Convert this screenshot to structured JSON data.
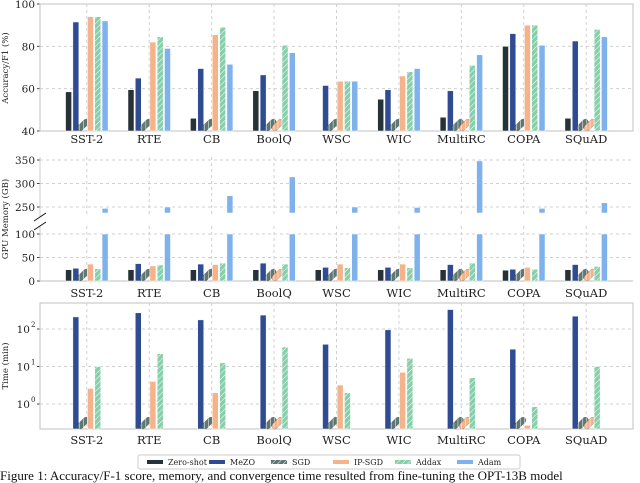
{
  "colors": {
    "Zero-shot": "#263238",
    "MeZO": "#2f4b92",
    "SGD": "#5d7772",
    "IP-SGD": "#f4b38a",
    "Addax": "#86cfaa",
    "Adam": "#7fb2ec"
  },
  "oom_marker": "hatched-out-of-memory-marker",
  "chart_data": [
    {
      "type": "bar",
      "ylabel": "Accuracy/F1 (%)",
      "ylim": [
        40,
        100
      ],
      "yticks": [
        "40",
        "60",
        "80",
        "100"
      ],
      "grid": true,
      "categories": [
        "SST-2",
        "RTE",
        "CB",
        "BoolQ",
        "WSC",
        "WIC",
        "MultiRC",
        "COPA",
        "SQuAD"
      ],
      "series": [
        {
          "name": "Zero-shot",
          "values": [
            58.5,
            59.5,
            46,
            59,
            null,
            55,
            46.5,
            80,
            46
          ]
        },
        {
          "name": "MeZO",
          "values": [
            91.5,
            65,
            69.5,
            66.5,
            61.5,
            59.5,
            59,
            86,
            82.5
          ]
        },
        {
          "name": "SGD",
          "values": [
            "OOM",
            "OOM",
            "OOM",
            "OOM",
            "OOM",
            "OOM",
            "OOM",
            "OOM",
            "OOM"
          ]
        },
        {
          "name": "IP-SGD",
          "values": [
            94,
            82,
            85.5,
            "OOM",
            63.5,
            66,
            "OOM",
            90,
            "OOM"
          ]
        },
        {
          "name": "Addax",
          "values": [
            94,
            84.5,
            89,
            80.5,
            63.5,
            68,
            71,
            90,
            88
          ]
        },
        {
          "name": "Adam",
          "values": [
            92,
            79,
            71.5,
            77,
            63.5,
            69.5,
            76,
            80.5,
            84.5
          ]
        }
      ]
    },
    {
      "type": "bar",
      "ylabel": "GPU Memory (GB)",
      "broken_axis": true,
      "ylim_lower": [
        0,
        100
      ],
      "ylim_upper": [
        230,
        350
      ],
      "yticks": [
        "0",
        "50",
        "100",
        "250",
        "300",
        "350"
      ],
      "grid": true,
      "categories": [
        "SST-2",
        "RTE",
        "CB",
        "BoolQ",
        "WSC",
        "WIC",
        "MultiRC",
        "COPA",
        "SQuAD"
      ],
      "series": [
        {
          "name": "Zero-shot",
          "values": [
            24,
            24,
            24,
            24,
            24,
            24,
            24,
            23,
            24
          ]
        },
        {
          "name": "MeZO",
          "values": [
            27,
            37,
            36,
            38,
            29,
            29,
            35,
            25,
            35
          ]
        },
        {
          "name": "SGD",
          "values": [
            "OOM",
            "OOM",
            "OOM",
            "OOM",
            "OOM",
            "OOM",
            "OOM",
            "OOM",
            "OOM"
          ]
        },
        {
          "name": "IP-SGD",
          "values": [
            36,
            32,
            35,
            "OOM",
            36,
            36,
            "OOM",
            29,
            "OOM"
          ]
        },
        {
          "name": "Addax",
          "values": [
            26,
            34,
            38,
            36,
            28,
            28,
            38,
            25,
            31
          ]
        },
        {
          "name": "Adam",
          "values": [
            247,
            250,
            274,
            314,
            250,
            249,
            348,
            247,
            259
          ]
        }
      ]
    },
    {
      "type": "bar",
      "ylabel": "Time (min)",
      "yscale": "log",
      "ylim": [
        0.22,
        500
      ],
      "yticks": [
        "10^0",
        "10^1",
        "10^2"
      ],
      "grid": true,
      "categories": [
        "SST-2",
        "RTE",
        "CB",
        "BoolQ",
        "WSC",
        "WIC",
        "MultiRC",
        "COPA",
        "SQuAD"
      ],
      "series": [
        {
          "name": "Zero-shot",
          "values": [
            null,
            null,
            null,
            null,
            null,
            null,
            null,
            null,
            null
          ]
        },
        {
          "name": "MeZO",
          "values": [
            210,
            270,
            175,
            235,
            39,
            95,
            330,
            29,
            220
          ]
        },
        {
          "name": "SGD",
          "values": [
            "OOM",
            "OOM",
            "OOM",
            "OOM",
            "OOM",
            "OOM",
            "OOM",
            "OOM",
            "OOM"
          ]
        },
        {
          "name": "IP-SGD",
          "values": [
            2.6,
            4,
            2,
            "OOM",
            3.2,
            7,
            "OOM",
            0.27,
            "OOM"
          ]
        },
        {
          "name": "Addax",
          "values": [
            10,
            22,
            12.5,
            33,
            2,
            16.5,
            5,
            0.85,
            10
          ]
        },
        {
          "name": "Adam",
          "values": [
            null,
            null,
            null,
            null,
            null,
            null,
            null,
            null,
            null
          ]
        }
      ]
    }
  ],
  "legend": [
    "Zero-shot",
    "MeZO",
    "SGD",
    "IP-SGD",
    "Addax",
    "Adam"
  ],
  "caption": "Figure 1: Accuracy/F-1 score, memory, and convergence time resulted from fine-tuning the OPT-13B model"
}
